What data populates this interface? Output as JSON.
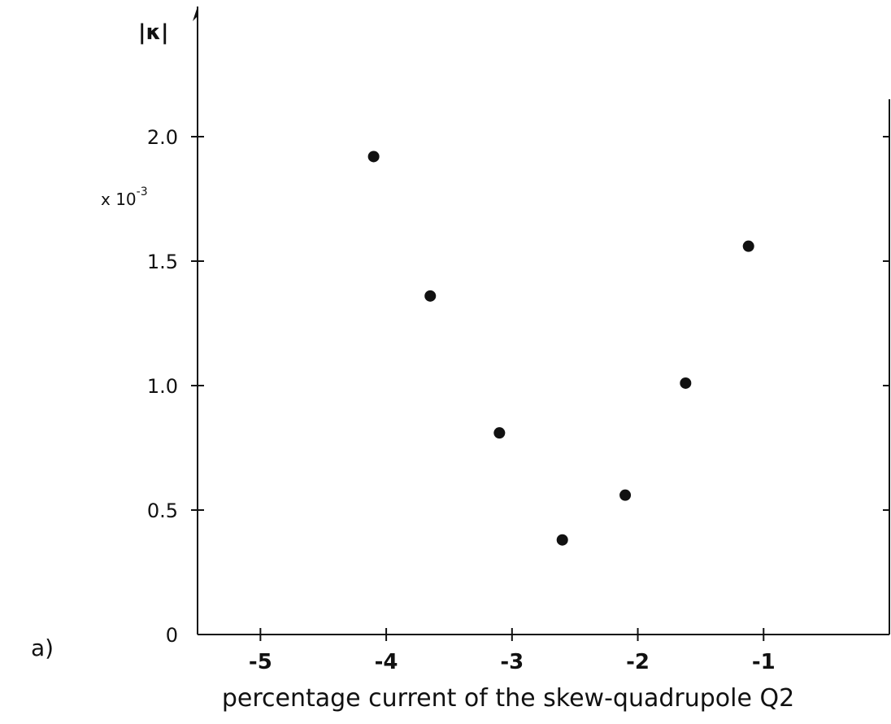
{
  "panel_label": "a)",
  "chart_data": {
    "type": "scatter",
    "xlabel": "percentage current of the skew-quadrupole Q2",
    "ylabel": "|κ|",
    "y_multiplier": {
      "base": "x 10",
      "exponent": "-3"
    },
    "xlim": [
      -5.5,
      0
    ],
    "ylim": [
      0,
      2.0
    ],
    "x_ticks": [
      -5,
      -4,
      -3,
      -2,
      -1
    ],
    "x_tick_labels": [
      "-5",
      "-4",
      "-3",
      "-2",
      "-1"
    ],
    "y_ticks": [
      0,
      0.5,
      1.0,
      1.5,
      2.0
    ],
    "y_tick_labels": [
      "0",
      "0.5",
      "1.0",
      "1.5",
      "2.0"
    ],
    "grid": false,
    "x": [
      -4.1,
      -3.65,
      -3.1,
      -2.6,
      -2.1,
      -1.62,
      -1.12
    ],
    "y": [
      1.92,
      1.36,
      0.81,
      0.38,
      0.56,
      1.01,
      1.56
    ],
    "point_color": "#111111"
  }
}
